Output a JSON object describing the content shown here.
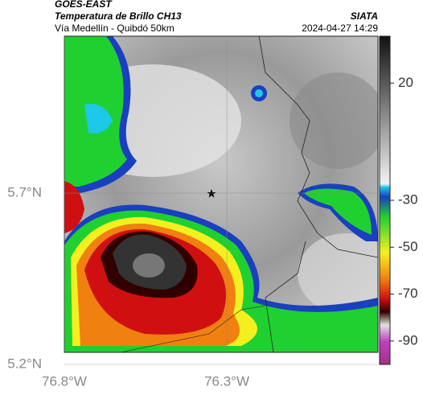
{
  "header": {
    "source": "GOES-EAST",
    "title": "Temperatura de Brillo CH13",
    "agency": "SIATA",
    "route": "Vía Medellín - Quibdó 50km",
    "datetime": "2024-04-27 14:29"
  },
  "map": {
    "xlim": [
      -76.8,
      -75.835
    ],
    "ylim": [
      5.2,
      6.158
    ],
    "xticks": [
      {
        "value": -76.8,
        "label": "76.8°W"
      },
      {
        "value": -76.3,
        "label": "76.3°W"
      }
    ],
    "yticks": [
      {
        "value": 5.2,
        "label": "5.2°N"
      },
      {
        "value": 5.7,
        "label": "5.7°N"
      }
    ]
  },
  "colorbar": {
    "clim": [
      40,
      -100
    ],
    "ticks": [
      20,
      -30,
      -50,
      -70,
      -90
    ]
  }
}
